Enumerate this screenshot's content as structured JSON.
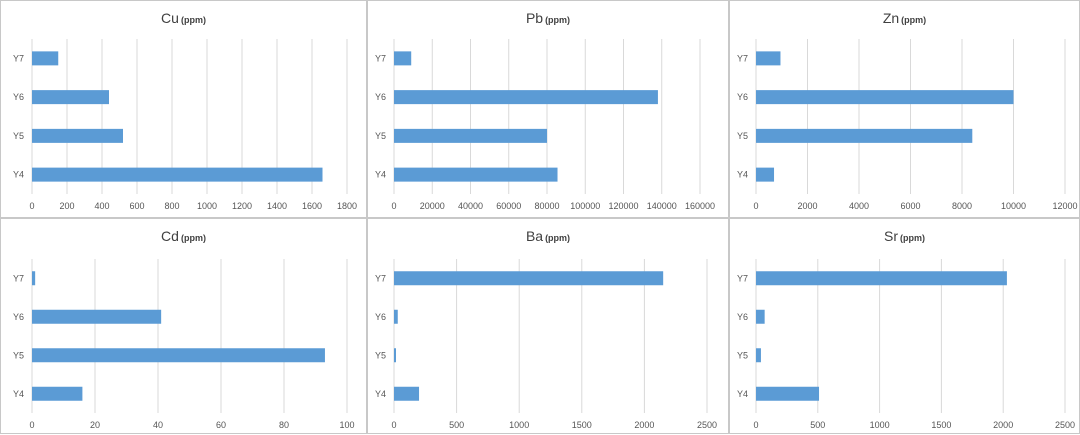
{
  "colors": {
    "bar": "#5b9bd5",
    "grid": "#d9d9d9",
    "text": "#555555",
    "border": "#c8c8c8"
  },
  "chart_data": [
    {
      "type": "bar",
      "orientation": "horizontal",
      "title": "Cu",
      "unit": "(ppm)",
      "categories": [
        "Y7",
        "Y6",
        "Y5",
        "Y4"
      ],
      "values": [
        150,
        440,
        520,
        1660
      ],
      "xlim": [
        0,
        1800
      ],
      "xticks": [
        0,
        200,
        400,
        600,
        800,
        1000,
        1200,
        1400,
        1600,
        1800
      ],
      "xticklabels": [
        "0",
        "200",
        "400",
        "600",
        "800",
        "1000",
        "1200",
        "1400",
        "1600",
        "1800"
      ],
      "grid": true
    },
    {
      "type": "bar",
      "orientation": "horizontal",
      "title": "Pb",
      "unit": "(ppm)",
      "categories": [
        "Y7",
        "Y6",
        "Y5",
        "Y4"
      ],
      "values": [
        9000,
        138000,
        80000,
        85500
      ],
      "xlim": [
        0,
        160000
      ],
      "xticks": [
        0,
        20000,
        40000,
        60000,
        80000,
        100000,
        120000,
        140000,
        160000
      ],
      "xticklabels": [
        "0",
        "20000",
        "40000",
        "60000",
        "80000",
        "100000",
        "120000",
        "140000",
        "160000"
      ],
      "grid": true
    },
    {
      "type": "bar",
      "orientation": "horizontal",
      "title": "Zn",
      "unit": "(ppm)",
      "categories": [
        "Y7",
        "Y6",
        "Y5",
        "Y4"
      ],
      "values": [
        950,
        10000,
        8400,
        700
      ],
      "xlim": [
        0,
        12000
      ],
      "xticks": [
        0,
        2000,
        4000,
        6000,
        8000,
        10000,
        12000
      ],
      "xticklabels": [
        "0",
        "2000",
        "4000",
        "6000",
        "8000",
        "10000",
        "12000"
      ],
      "grid": true
    },
    {
      "type": "bar",
      "orientation": "horizontal",
      "title": "Cd",
      "unit": "(ppm)",
      "categories": [
        "Y7",
        "Y6",
        "Y5",
        "Y4"
      ],
      "values": [
        1,
        41,
        93,
        16
      ],
      "xlim": [
        0,
        100
      ],
      "xticks": [
        0,
        20,
        40,
        60,
        80,
        100
      ],
      "xticklabels": [
        "0",
        "20",
        "40",
        "60",
        "80",
        "100"
      ],
      "grid": true
    },
    {
      "type": "bar",
      "orientation": "horizontal",
      "title": "Ba",
      "unit": "(ppm)",
      "categories": [
        "Y7",
        "Y6",
        "Y5",
        "Y4"
      ],
      "values": [
        2150,
        30,
        15,
        200
      ],
      "xlim": [
        0,
        2500
      ],
      "xticks": [
        0,
        500,
        1000,
        1500,
        2000,
        2500
      ],
      "xticklabels": [
        "0",
        "500",
        "1000",
        "1500",
        "2000",
        "2500"
      ],
      "grid": true
    },
    {
      "type": "bar",
      "orientation": "horizontal",
      "title": "Sr",
      "unit": "(ppm)",
      "categories": [
        "Y7",
        "Y6",
        "Y5",
        "Y4"
      ],
      "values": [
        2030,
        70,
        40,
        510
      ],
      "xlim": [
        0,
        2500
      ],
      "xticks": [
        0,
        500,
        1000,
        1500,
        2000,
        2500
      ],
      "xticklabels": [
        "0",
        "500",
        "1000",
        "1500",
        "2000",
        "2500"
      ],
      "grid": true
    }
  ]
}
